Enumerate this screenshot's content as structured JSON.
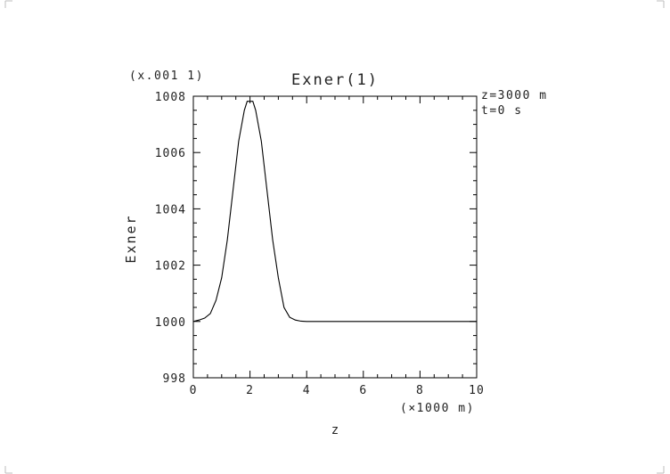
{
  "chart_data": {
    "type": "line",
    "title": "Exner(1)",
    "scale_note": "(x.001 1)",
    "xlabel": "z",
    "x_unit_label": "(×1000 m)",
    "ylabel": "Exner",
    "xlim": [
      0,
      10
    ],
    "ylim": [
      998,
      1008
    ],
    "x_ticks": [
      "0",
      "2",
      "4",
      "6",
      "8",
      "10"
    ],
    "y_ticks": [
      "998",
      "1000",
      "1002",
      "1004",
      "1006",
      "1008"
    ],
    "annotations": [
      "z=3000 m",
      "t=0 s"
    ],
    "grid": false,
    "series": [
      {
        "x": [
          0,
          0.2,
          0.4,
          0.6,
          0.8,
          1.0,
          1.2,
          1.4,
          1.6,
          1.8,
          1.9,
          2.0,
          2.1,
          2.2,
          2.4,
          2.6,
          2.8,
          3.0,
          3.2,
          3.4,
          3.6,
          3.8,
          4.0,
          5,
          6,
          7,
          8,
          9,
          10
        ],
        "y": [
          1000.0,
          1000.05,
          1000.12,
          1000.28,
          1000.75,
          1001.55,
          1002.9,
          1004.65,
          1006.4,
          1007.5,
          1007.82,
          1007.82,
          1007.82,
          1007.5,
          1006.4,
          1004.65,
          1002.9,
          1001.55,
          1000.5,
          1000.15,
          1000.05,
          1000.01,
          1000.0,
          1000.0,
          1000.0,
          1000.0,
          1000.0,
          1000.0,
          1000.0
        ],
        "color": "#000000"
      }
    ]
  }
}
